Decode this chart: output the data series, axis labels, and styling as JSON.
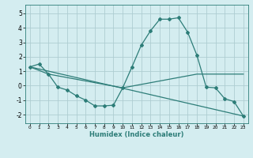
{
  "title": "",
  "xlabel": "Humidex (Indice chaleur)",
  "background_color": "#d4edf0",
  "grid_color": "#aecdd2",
  "line_color": "#2d7d78",
  "xlim": [
    -0.5,
    23.5
  ],
  "ylim": [
    -2.6,
    5.6
  ],
  "xticks": [
    0,
    1,
    2,
    3,
    4,
    5,
    6,
    7,
    8,
    9,
    10,
    11,
    12,
    13,
    14,
    15,
    16,
    17,
    18,
    19,
    20,
    21,
    22,
    23
  ],
  "yticks": [
    -2,
    -1,
    0,
    1,
    2,
    3,
    4,
    5
  ],
  "series1_x": [
    0,
    1,
    2,
    3,
    4,
    5,
    6,
    7,
    8,
    9,
    10,
    11,
    12,
    13,
    14,
    15,
    16,
    17,
    18,
    19,
    20,
    21,
    22,
    23
  ],
  "series1_y": [
    1.3,
    1.5,
    0.8,
    -0.1,
    -0.3,
    -0.7,
    -1.0,
    -1.4,
    -1.4,
    -1.35,
    -0.15,
    1.3,
    2.8,
    3.8,
    4.6,
    4.6,
    4.7,
    3.7,
    2.1,
    -0.1,
    -0.15,
    -0.9,
    -1.1,
    -2.1
  ],
  "series2_x": [
    0,
    2,
    10,
    18,
    23
  ],
  "series2_y": [
    1.3,
    0.8,
    -0.15,
    0.8,
    0.8
  ],
  "series3_x": [
    0,
    23
  ],
  "series3_y": [
    1.3,
    -2.1
  ]
}
